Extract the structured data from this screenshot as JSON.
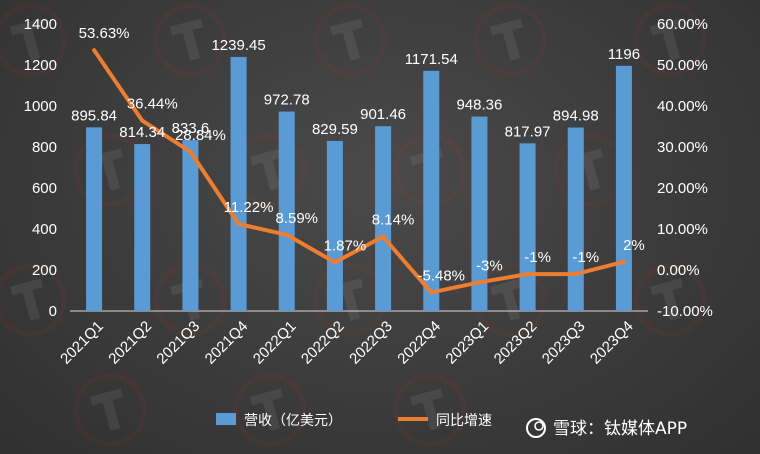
{
  "chart_data": {
    "type": "bar",
    "categories": [
      "2021Q1",
      "2021Q2",
      "2021Q3",
      "2021Q4",
      "2022Q1",
      "2022Q2",
      "2022Q3",
      "2022Q4",
      "2023Q1",
      "2023Q2",
      "2023Q3",
      "2023Q4"
    ],
    "series": [
      {
        "name": "营收（亿美元）",
        "type": "bar",
        "axis": "left",
        "color": "#5b9bd5",
        "values": [
          895.84,
          814.34,
          833.6,
          1239.45,
          972.78,
          829.59,
          901.46,
          1171.54,
          948.36,
          817.97,
          894.98,
          1196
        ],
        "labels": [
          "895.84",
          "814.34",
          "833.6",
          "1239.45",
          "972.78",
          "829.59",
          "901.46",
          "1171.54",
          "948.36",
          "817.97",
          "894.98",
          "1196"
        ]
      },
      {
        "name": "同比增速",
        "type": "line",
        "axis": "right",
        "color": "#ed7d31",
        "values": [
          53.63,
          36.44,
          28.84,
          11.22,
          8.59,
          1.87,
          8.14,
          -5.48,
          -3,
          -1,
          -1,
          2
        ],
        "labels": [
          "53.63%",
          "36.44%",
          "28.84%",
          "11.22%",
          "8.59%",
          "1.87%",
          "8.14%",
          "-5.48%",
          "-3%",
          "-1%",
          "-1%",
          "2%"
        ]
      }
    ],
    "left_axis": {
      "ylim": [
        0,
        1400
      ],
      "ticks": [
        "0",
        "200",
        "400",
        "600",
        "800",
        "1000",
        "1200",
        "1400"
      ]
    },
    "right_axis": {
      "ylim": [
        -10,
        60
      ],
      "ticks": [
        "-10.00%",
        "0.00%",
        "10.00%",
        "20.00%",
        "30.00%",
        "40.00%",
        "50.00%",
        "60.00%"
      ]
    },
    "grid": false,
    "legend_position": "bottom"
  },
  "watermark": {
    "text": "雪球：钛媒体APP"
  }
}
